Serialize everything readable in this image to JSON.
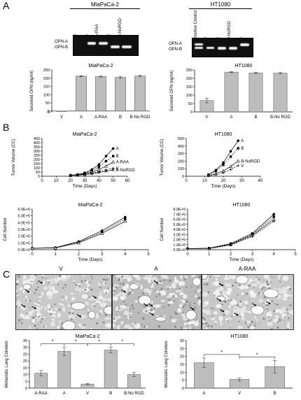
{
  "panels": {
    "a": "A",
    "b": "B",
    "c": "C"
  },
  "gel_left": {
    "title": "MiaPaCa-2",
    "lanes": [
      "V",
      "A",
      "A-RAA",
      "B",
      "B-NoRGD"
    ],
    "band_labels": [
      "OPN-A",
      "OPN-B"
    ]
  },
  "gel_right": {
    "title": "HT1080",
    "lanes": [
      "Positive Control",
      "V",
      "B",
      "B-NoRGD",
      "A"
    ],
    "band_labels": [
      "OPN-A",
      "OPN-B"
    ]
  },
  "micro": {
    "v": "V",
    "a": "A",
    "araa": "A-RAA"
  },
  "colors": {
    "bar_fill": "#bdbdbd",
    "gel": "#101010"
  },
  "chart_data": [
    {
      "id": "secreted-miapaca",
      "type": "bar",
      "title": "MiaPaCa-2",
      "ylabel": "Secreted OPN (ng/ml)",
      "categories": [
        "V",
        "A",
        "A-RAA",
        "B",
        "B-No RGD"
      ],
      "values": [
        -3,
        212,
        210,
        205,
        213
      ],
      "errors": [
        0,
        3,
        4,
        6,
        5
      ],
      "ylim": [
        -5,
        250
      ],
      "yticks": [
        -5,
        0,
        50,
        100,
        150,
        200,
        250
      ]
    },
    {
      "id": "secreted-ht1080",
      "type": "bar",
      "title": "HT1080",
      "ylabel": "Secreted OPN (ng/ml)",
      "categories": [
        "V",
        "A",
        "B",
        "B-No RGD"
      ],
      "values": [
        68,
        237,
        232,
        231
      ],
      "errors": [
        14,
        3,
        3,
        3
      ],
      "ylim": [
        0,
        250
      ],
      "yticks": [
        0,
        50,
        100,
        150,
        200,
        250
      ]
    },
    {
      "id": "tumor-miapaca",
      "type": "line",
      "title": "MiaPaCa-2",
      "xlabel": "Time (Days)",
      "ylabel": "Tumor Volume (CC)",
      "xlim": [
        0,
        60
      ],
      "xticks": [
        0,
        10,
        20,
        30,
        40,
        50,
        60
      ],
      "ylim": [
        0,
        450
      ],
      "yticks": [
        0,
        50,
        100,
        150,
        200,
        250,
        300,
        350,
        400,
        450
      ],
      "x": [
        20,
        25,
        30,
        35,
        40,
        45,
        50
      ],
      "series": [
        {
          "name": "A",
          "values": [
            12,
            20,
            40,
            80,
            140,
            240,
            330
          ]
        },
        {
          "name": "B",
          "values": [
            11,
            18,
            35,
            65,
            110,
            180,
            240
          ]
        },
        {
          "name": "A-RAA",
          "values": [
            10,
            16,
            28,
            50,
            80,
            120,
            170
          ]
        },
        {
          "name": "V",
          "values": [
            9,
            14,
            22,
            35,
            55,
            75,
            95
          ]
        },
        {
          "name": "B-NoRGD",
          "values": [
            9,
            13,
            20,
            30,
            45,
            60,
            75
          ]
        }
      ]
    },
    {
      "id": "tumor-ht1080",
      "type": "line",
      "title": "HT1080",
      "xlabel": "Time (Days)",
      "ylabel": "Tumor Volume (CC)",
      "xlim": [
        0,
        40
      ],
      "xticks": [
        0,
        10,
        20,
        30,
        40
      ],
      "ylim": [
        0,
        500
      ],
      "yticks": [
        0,
        100,
        200,
        300,
        400,
        500
      ],
      "x": [
        12,
        16,
        20,
        24,
        28
      ],
      "series": [
        {
          "name": "A",
          "values": [
            20,
            80,
            180,
            330,
            470
          ]
        },
        {
          "name": "B",
          "values": [
            18,
            70,
            150,
            260,
            370
          ]
        },
        {
          "name": "B-NoRGD",
          "values": [
            10,
            35,
            70,
            130,
            200
          ]
        },
        {
          "name": "V",
          "values": [
            5,
            20,
            45,
            90,
            140
          ]
        }
      ]
    },
    {
      "id": "cells-miapaca",
      "type": "line",
      "title": "MiaPaCa-2",
      "xlabel": "Time (Days)",
      "ylabel": "Cell Number",
      "xlim": [
        0,
        5
      ],
      "xticks": [
        0,
        1,
        2,
        3,
        4,
        5
      ],
      "ylim": [
        0,
        600000
      ],
      "yticks": [
        0,
        100000,
        200000,
        300000,
        400000,
        500000,
        600000
      ],
      "ytick_labels": [
        "0.0E+0",
        "1.0E+5",
        "2.0E+5",
        "3.0E+5",
        "4.0E+5",
        "5.0E+5",
        "6.0E+5"
      ],
      "x": [
        0,
        1,
        2,
        3,
        4
      ],
      "series": [
        {
          "values": [
            20000,
            30000,
            120000,
            280000,
            480000
          ]
        },
        {
          "values": [
            20000,
            28000,
            110000,
            260000,
            450000
          ]
        },
        {
          "values": [
            20000,
            25000,
            100000,
            240000,
            420000
          ]
        }
      ]
    },
    {
      "id": "cells-ht1080",
      "type": "line",
      "title": "HT1080",
      "xlabel": "Time (Days)",
      "ylabel": "Cell Number",
      "xlim": [
        0,
        5
      ],
      "xticks": [
        0,
        1,
        2,
        3,
        4,
        5
      ],
      "ylim": [
        0,
        800000
      ],
      "yticks": [
        0,
        100000,
        200000,
        300000,
        400000,
        500000,
        600000,
        700000,
        800000
      ],
      "ytick_labels": [
        "0.0E+0",
        "1.0E+5",
        "2.0E+5",
        "3.0E+5",
        "4.0E+5",
        "5.0E+5",
        "6.0E+5",
        "7.0E+5",
        "8.0E+5"
      ],
      "x": [
        0,
        1,
        2,
        3,
        4
      ],
      "series": [
        {
          "values": [
            20000,
            30000,
            120000,
            320000,
            700000
          ]
        },
        {
          "values": [
            20000,
            28000,
            110000,
            300000,
            650000
          ]
        },
        {
          "values": [
            20000,
            25000,
            100000,
            280000,
            600000
          ]
        },
        {
          "values": [
            20000,
            22000,
            90000,
            260000,
            560000
          ]
        }
      ]
    },
    {
      "id": "lung-miapaca",
      "type": "bar",
      "title": "MiaPaCa-2",
      "ylabel": "Metastatic Lung Colonies",
      "categories": [
        "A-RAA",
        "A",
        "V",
        "B",
        "B-No RGD"
      ],
      "values": [
        11,
        27,
        3,
        28,
        10
      ],
      "errors": [
        2,
        3,
        0.5,
        2,
        1.5
      ],
      "ylim": [
        0,
        35
      ],
      "yticks": [
        0,
        5,
        10,
        15,
        20,
        25,
        30,
        35
      ],
      "significance": [
        [
          0,
          1,
          "*"
        ],
        [
          1,
          2,
          "*"
        ],
        [
          2,
          3,
          "*"
        ],
        [
          3,
          4,
          "*"
        ]
      ]
    },
    {
      "id": "lung-ht1080",
      "type": "bar",
      "title": "HT1080",
      "ylabel": "Metastatic Lung Colonies",
      "categories": [
        "A",
        "V",
        "B"
      ],
      "values": [
        16,
        5.5,
        13.5
      ],
      "errors": [
        3,
        1,
        4
      ],
      "ylim": [
        0,
        30
      ],
      "yticks": [
        0,
        5,
        10,
        15,
        20,
        25,
        30
      ],
      "significance": [
        [
          0,
          1,
          "*"
        ],
        [
          1,
          2,
          "*"
        ]
      ]
    }
  ]
}
